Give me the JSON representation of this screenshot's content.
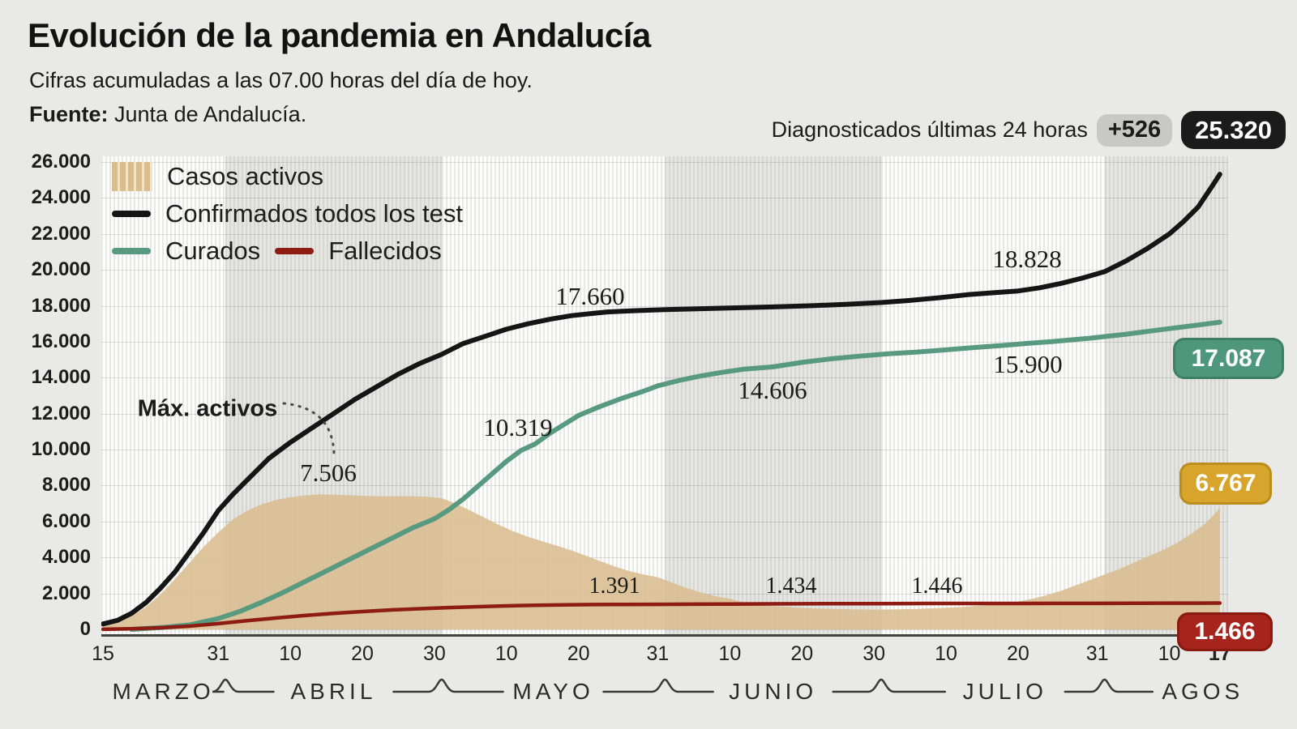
{
  "header": {
    "title": "Evolución de la pandemia en Andalucía",
    "subtitle": "Cifras acumuladas a las 07.00 horas del día de hoy.",
    "source_label": "Fuente:",
    "source_value": "Junta de Andalucía.",
    "diag_label": "Diagnosticados últimas 24 horas",
    "diag_delta": "+526",
    "diag_total": "25.320"
  },
  "legend": {
    "items": [
      {
        "label": "Casos activos",
        "type": "area",
        "color": "#d9bd8f"
      },
      {
        "label": "Confirmados todos los test",
        "type": "line",
        "color": "#151515"
      },
      {
        "label": "Curados",
        "type": "line",
        "color": "#579a80"
      },
      {
        "label": "Fallecidos",
        "type": "line",
        "color": "#8e1c12"
      }
    ]
  },
  "chart_data": {
    "type": "line",
    "title": "Evolución de la pandemia en Andalucía",
    "x_unit": "days since 15 March 2020",
    "x_range": [
      0,
      155
    ],
    "ylim": [
      0,
      26000
    ],
    "grid": true,
    "legend_position": "top-left",
    "y_ticks": [
      {
        "v": 26000,
        "label": "26.000"
      },
      {
        "v": 24000,
        "label": "24.000"
      },
      {
        "v": 22000,
        "label": "22.000"
      },
      {
        "v": 20000,
        "label": "20.000"
      },
      {
        "v": 18000,
        "label": "18.000"
      },
      {
        "v": 16000,
        "label": "16.000"
      },
      {
        "v": 14000,
        "label": "14.000"
      },
      {
        "v": 12000,
        "label": "12.000"
      },
      {
        "v": 10000,
        "label": "10.000"
      },
      {
        "v": 8000,
        "label": "8.000"
      },
      {
        "v": 6000,
        "label": "6.000"
      },
      {
        "v": 4000,
        "label": "4.000"
      },
      {
        "v": 2000,
        "label": "2.000"
      },
      {
        "v": 0,
        "label": "0"
      }
    ],
    "x_ticks": [
      {
        "day": 0,
        "label": "15"
      },
      {
        "day": 16,
        "label": "31"
      },
      {
        "day": 26,
        "label": "10"
      },
      {
        "day": 36,
        "label": "20"
      },
      {
        "day": 46,
        "label": "30"
      },
      {
        "day": 56,
        "label": "10"
      },
      {
        "day": 66,
        "label": "20"
      },
      {
        "day": 77,
        "label": "31"
      },
      {
        "day": 87,
        "label": "10"
      },
      {
        "day": 97,
        "label": "20"
      },
      {
        "day": 107,
        "label": "30"
      },
      {
        "day": 117,
        "label": "10"
      },
      {
        "day": 127,
        "label": "20"
      },
      {
        "day": 138,
        "label": "31"
      },
      {
        "day": 148,
        "label": "10"
      },
      {
        "day": 155,
        "label": "17",
        "bold": true
      }
    ],
    "months": [
      {
        "label": "MARZO",
        "start_day": 0,
        "end_day": 17,
        "shade": "light"
      },
      {
        "label": "ABRIL",
        "start_day": 17,
        "end_day": 47,
        "shade": "dark"
      },
      {
        "label": "MAYO",
        "start_day": 47,
        "end_day": 78,
        "shade": "light"
      },
      {
        "label": "JUNIO",
        "start_day": 78,
        "end_day": 108,
        "shade": "dark"
      },
      {
        "label": "JULIO",
        "start_day": 108,
        "end_day": 139,
        "shade": "light"
      },
      {
        "label": "AGOS",
        "start_day": 139,
        "end_day": 155,
        "shade": "dark"
      }
    ],
    "series": [
      {
        "name": "Casos activos",
        "type": "area",
        "color": "#d9bd8f",
        "points": [
          [
            0,
            200
          ],
          [
            2,
            400
          ],
          [
            4,
            750
          ],
          [
            6,
            1250
          ],
          [
            8,
            1950
          ],
          [
            10,
            2800
          ],
          [
            12,
            3700
          ],
          [
            14,
            4600
          ],
          [
            16,
            5400
          ],
          [
            18,
            6100
          ],
          [
            20,
            6600
          ],
          [
            22,
            6950
          ],
          [
            24,
            7200
          ],
          [
            26,
            7350
          ],
          [
            28,
            7450
          ],
          [
            30,
            7506
          ],
          [
            33,
            7480
          ],
          [
            36,
            7430
          ],
          [
            39,
            7400
          ],
          [
            42,
            7410
          ],
          [
            45,
            7380
          ],
          [
            47,
            7300
          ],
          [
            49,
            7000
          ],
          [
            51,
            6600
          ],
          [
            53,
            6200
          ],
          [
            55,
            5800
          ],
          [
            57,
            5450
          ],
          [
            59,
            5150
          ],
          [
            61,
            4900
          ],
          [
            63,
            4650
          ],
          [
            65,
            4400
          ],
          [
            67,
            4100
          ],
          [
            69,
            3800
          ],
          [
            71,
            3500
          ],
          [
            73,
            3250
          ],
          [
            75,
            3050
          ],
          [
            77,
            2900
          ],
          [
            79,
            2600
          ],
          [
            81,
            2300
          ],
          [
            83,
            2050
          ],
          [
            85,
            1850
          ],
          [
            87,
            1700
          ],
          [
            89,
            1500
          ],
          [
            91,
            1380
          ],
          [
            93,
            1300
          ],
          [
            95,
            1250
          ],
          [
            97,
            1200
          ],
          [
            100,
            1150
          ],
          [
            103,
            1120
          ],
          [
            107,
            1100
          ],
          [
            110,
            1110
          ],
          [
            113,
            1140
          ],
          [
            116,
            1180
          ],
          [
            119,
            1240
          ],
          [
            122,
            1330
          ],
          [
            125,
            1450
          ],
          [
            127,
            1550
          ],
          [
            129,
            1700
          ],
          [
            131,
            1900
          ],
          [
            133,
            2150
          ],
          [
            135,
            2450
          ],
          [
            137,
            2750
          ],
          [
            139,
            3050
          ],
          [
            141,
            3350
          ],
          [
            143,
            3700
          ],
          [
            145,
            4050
          ],
          [
            147,
            4400
          ],
          [
            149,
            4800
          ],
          [
            151,
            5300
          ],
          [
            153,
            5900
          ],
          [
            154,
            6300
          ],
          [
            155,
            6767
          ]
        ]
      },
      {
        "name": "Confirmados todos los test",
        "type": "line",
        "color": "#151515",
        "points": [
          [
            0,
            300
          ],
          [
            2,
            500
          ],
          [
            4,
            900
          ],
          [
            6,
            1500
          ],
          [
            8,
            2300
          ],
          [
            10,
            3200
          ],
          [
            12,
            4300
          ],
          [
            14,
            5400
          ],
          [
            16,
            6600
          ],
          [
            18,
            7500
          ],
          [
            20,
            8300
          ],
          [
            23,
            9500
          ],
          [
            26,
            10400
          ],
          [
            29,
            11200
          ],
          [
            32,
            12000
          ],
          [
            35,
            12800
          ],
          [
            38,
            13500
          ],
          [
            41,
            14200
          ],
          [
            44,
            14800
          ],
          [
            47,
            15300
          ],
          [
            50,
            15900
          ],
          [
            53,
            16300
          ],
          [
            56,
            16700
          ],
          [
            59,
            17000
          ],
          [
            62,
            17250
          ],
          [
            65,
            17450
          ],
          [
            68,
            17580
          ],
          [
            70,
            17660
          ],
          [
            74,
            17730
          ],
          [
            78,
            17790
          ],
          [
            83,
            17840
          ],
          [
            88,
            17890
          ],
          [
            93,
            17940
          ],
          [
            98,
            18000
          ],
          [
            103,
            18080
          ],
          [
            108,
            18180
          ],
          [
            112,
            18300
          ],
          [
            116,
            18450
          ],
          [
            120,
            18620
          ],
          [
            124,
            18740
          ],
          [
            127,
            18828
          ],
          [
            130,
            19000
          ],
          [
            133,
            19250
          ],
          [
            136,
            19550
          ],
          [
            139,
            19900
          ],
          [
            142,
            20500
          ],
          [
            145,
            21200
          ],
          [
            148,
            22000
          ],
          [
            150,
            22700
          ],
          [
            152,
            23500
          ],
          [
            153,
            24100
          ],
          [
            154,
            24700
          ],
          [
            155,
            25320
          ]
        ]
      },
      {
        "name": "Curados",
        "type": "line",
        "color": "#579a80",
        "points": [
          [
            4,
            0
          ],
          [
            8,
            100
          ],
          [
            12,
            250
          ],
          [
            16,
            600
          ],
          [
            19,
            1000
          ],
          [
            22,
            1500
          ],
          [
            25,
            2050
          ],
          [
            28,
            2650
          ],
          [
            31,
            3250
          ],
          [
            34,
            3850
          ],
          [
            37,
            4450
          ],
          [
            40,
            5050
          ],
          [
            43,
            5650
          ],
          [
            46,
            6150
          ],
          [
            48,
            6650
          ],
          [
            50,
            7250
          ],
          [
            52,
            7950
          ],
          [
            54,
            8650
          ],
          [
            56,
            9350
          ],
          [
            58,
            9950
          ],
          [
            60,
            10319
          ],
          [
            62,
            10900
          ],
          [
            64,
            11400
          ],
          [
            66,
            11900
          ],
          [
            69,
            12400
          ],
          [
            72,
            12850
          ],
          [
            75,
            13250
          ],
          [
            77,
            13550
          ],
          [
            80,
            13850
          ],
          [
            83,
            14100
          ],
          [
            86,
            14300
          ],
          [
            89,
            14480
          ],
          [
            93,
            14606
          ],
          [
            97,
            14850
          ],
          [
            101,
            15050
          ],
          [
            105,
            15200
          ],
          [
            109,
            15330
          ],
          [
            113,
            15430
          ],
          [
            117,
            15550
          ],
          [
            121,
            15680
          ],
          [
            125,
            15800
          ],
          [
            128,
            15900
          ],
          [
            132,
            16020
          ],
          [
            137,
            16200
          ],
          [
            142,
            16420
          ],
          [
            147,
            16680
          ],
          [
            151,
            16880
          ],
          [
            155,
            17087
          ]
        ]
      },
      {
        "name": "Fallecidos",
        "type": "line",
        "color": "#8e1c12",
        "points": [
          [
            0,
            5
          ],
          [
            4,
            30
          ],
          [
            8,
            90
          ],
          [
            12,
            180
          ],
          [
            16,
            320
          ],
          [
            20,
            480
          ],
          [
            24,
            630
          ],
          [
            28,
            770
          ],
          [
            32,
            890
          ],
          [
            36,
            990
          ],
          [
            40,
            1080
          ],
          [
            44,
            1150
          ],
          [
            48,
            1210
          ],
          [
            52,
            1260
          ],
          [
            56,
            1305
          ],
          [
            60,
            1340
          ],
          [
            64,
            1365
          ],
          [
            68,
            1380
          ],
          [
            72,
            1387
          ],
          [
            77,
            1391
          ],
          [
            82,
            1400
          ],
          [
            87,
            1410
          ],
          [
            92,
            1419
          ],
          [
            97,
            1426
          ],
          [
            102,
            1431
          ],
          [
            107,
            1434
          ],
          [
            112,
            1437
          ],
          [
            117,
            1440
          ],
          [
            122,
            1442
          ],
          [
            127,
            1444
          ],
          [
            132,
            1445
          ],
          [
            138,
            1446
          ],
          [
            143,
            1452
          ],
          [
            148,
            1458
          ],
          [
            152,
            1462
          ],
          [
            155,
            1466
          ]
        ]
      }
    ],
    "annotations": [
      {
        "id": "max-activos",
        "text": "Máx. activos",
        "style": "sans"
      },
      {
        "id": "ann-7506",
        "text": "7.506",
        "refers_to": "Casos activos"
      },
      {
        "id": "ann-17660",
        "text": "17.660",
        "refers_to": "Confirmados todos los test"
      },
      {
        "id": "ann-10319",
        "text": "10.319",
        "refers_to": "Curados"
      },
      {
        "id": "ann-14606",
        "text": "14.606",
        "refers_to": "Curados"
      },
      {
        "id": "ann-18828",
        "text": "18.828",
        "refers_to": "Confirmados todos los test"
      },
      {
        "id": "ann-15900",
        "text": "15.900",
        "refers_to": "Curados"
      },
      {
        "id": "ann-1391",
        "text": "1.391",
        "refers_to": "Fallecidos",
        "small": true
      },
      {
        "id": "ann-1434",
        "text": "1.434",
        "refers_to": "Fallecidos",
        "small": true
      },
      {
        "id": "ann-1446",
        "text": "1.446",
        "refers_to": "Fallecidos",
        "small": true
      }
    ],
    "end_badges": [
      {
        "id": "badge-curados",
        "text": "17.087",
        "bg": "#4f977c",
        "border": "#3e8065"
      },
      {
        "id": "badge-activos",
        "text": "6.767",
        "bg": "#d7a42c",
        "border": "#bb8d1d"
      },
      {
        "id": "badge-fallecidos",
        "text": "1.466",
        "bg": "#a7241c",
        "border": "#891a12"
      }
    ]
  }
}
